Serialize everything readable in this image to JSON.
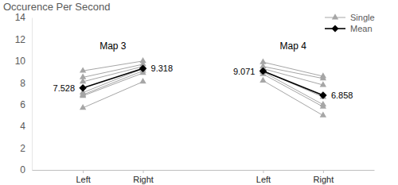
{
  "chart_data": {
    "type": "line",
    "title": "Occurence Per Second",
    "annotations": [
      "Map 3",
      "Map 4"
    ],
    "categories": [
      "Left",
      "Right",
      null,
      "Left",
      "Right"
    ],
    "ylim": [
      0,
      14
    ],
    "yticks": [
      0,
      2,
      4,
      6,
      8,
      10,
      12,
      14
    ],
    "grid": false,
    "legend": "top-right",
    "series": [
      {
        "name": "Single",
        "color": "#a6a6a6",
        "marker": "triangle",
        "values": [
          9.1,
          10.0,
          null,
          9.9,
          8.6
        ]
      },
      {
        "color": "#a6a6a6",
        "marker": "triangle",
        "values": [
          8.5,
          9.7,
          null,
          9.5,
          8.4
        ]
      },
      {
        "color": "#a6a6a6",
        "marker": "triangle",
        "values": [
          8.1,
          9.5,
          null,
          9.3,
          7.8
        ]
      },
      {
        "color": "#a6a6a6",
        "marker": "triangle",
        "values": [
          7.1,
          9.3,
          null,
          9.1,
          6.7
        ]
      },
      {
        "color": "#a6a6a6",
        "marker": "triangle",
        "values": [
          6.9,
          9.1,
          null,
          9.0,
          6.0
        ]
      },
      {
        "color": "#a6a6a6",
        "marker": "triangle",
        "values": [
          6.8,
          8.9,
          null,
          8.8,
          5.8
        ]
      },
      {
        "color": "#a6a6a6",
        "marker": "triangle",
        "values": [
          5.7,
          8.1,
          null,
          8.2,
          5.0
        ]
      },
      {
        "name": "Mean",
        "color": "#000000",
        "marker": "diamond",
        "data_labels": true,
        "values": [
          7.528,
          9.318,
          null,
          9.071,
          6.858
        ]
      }
    ]
  }
}
